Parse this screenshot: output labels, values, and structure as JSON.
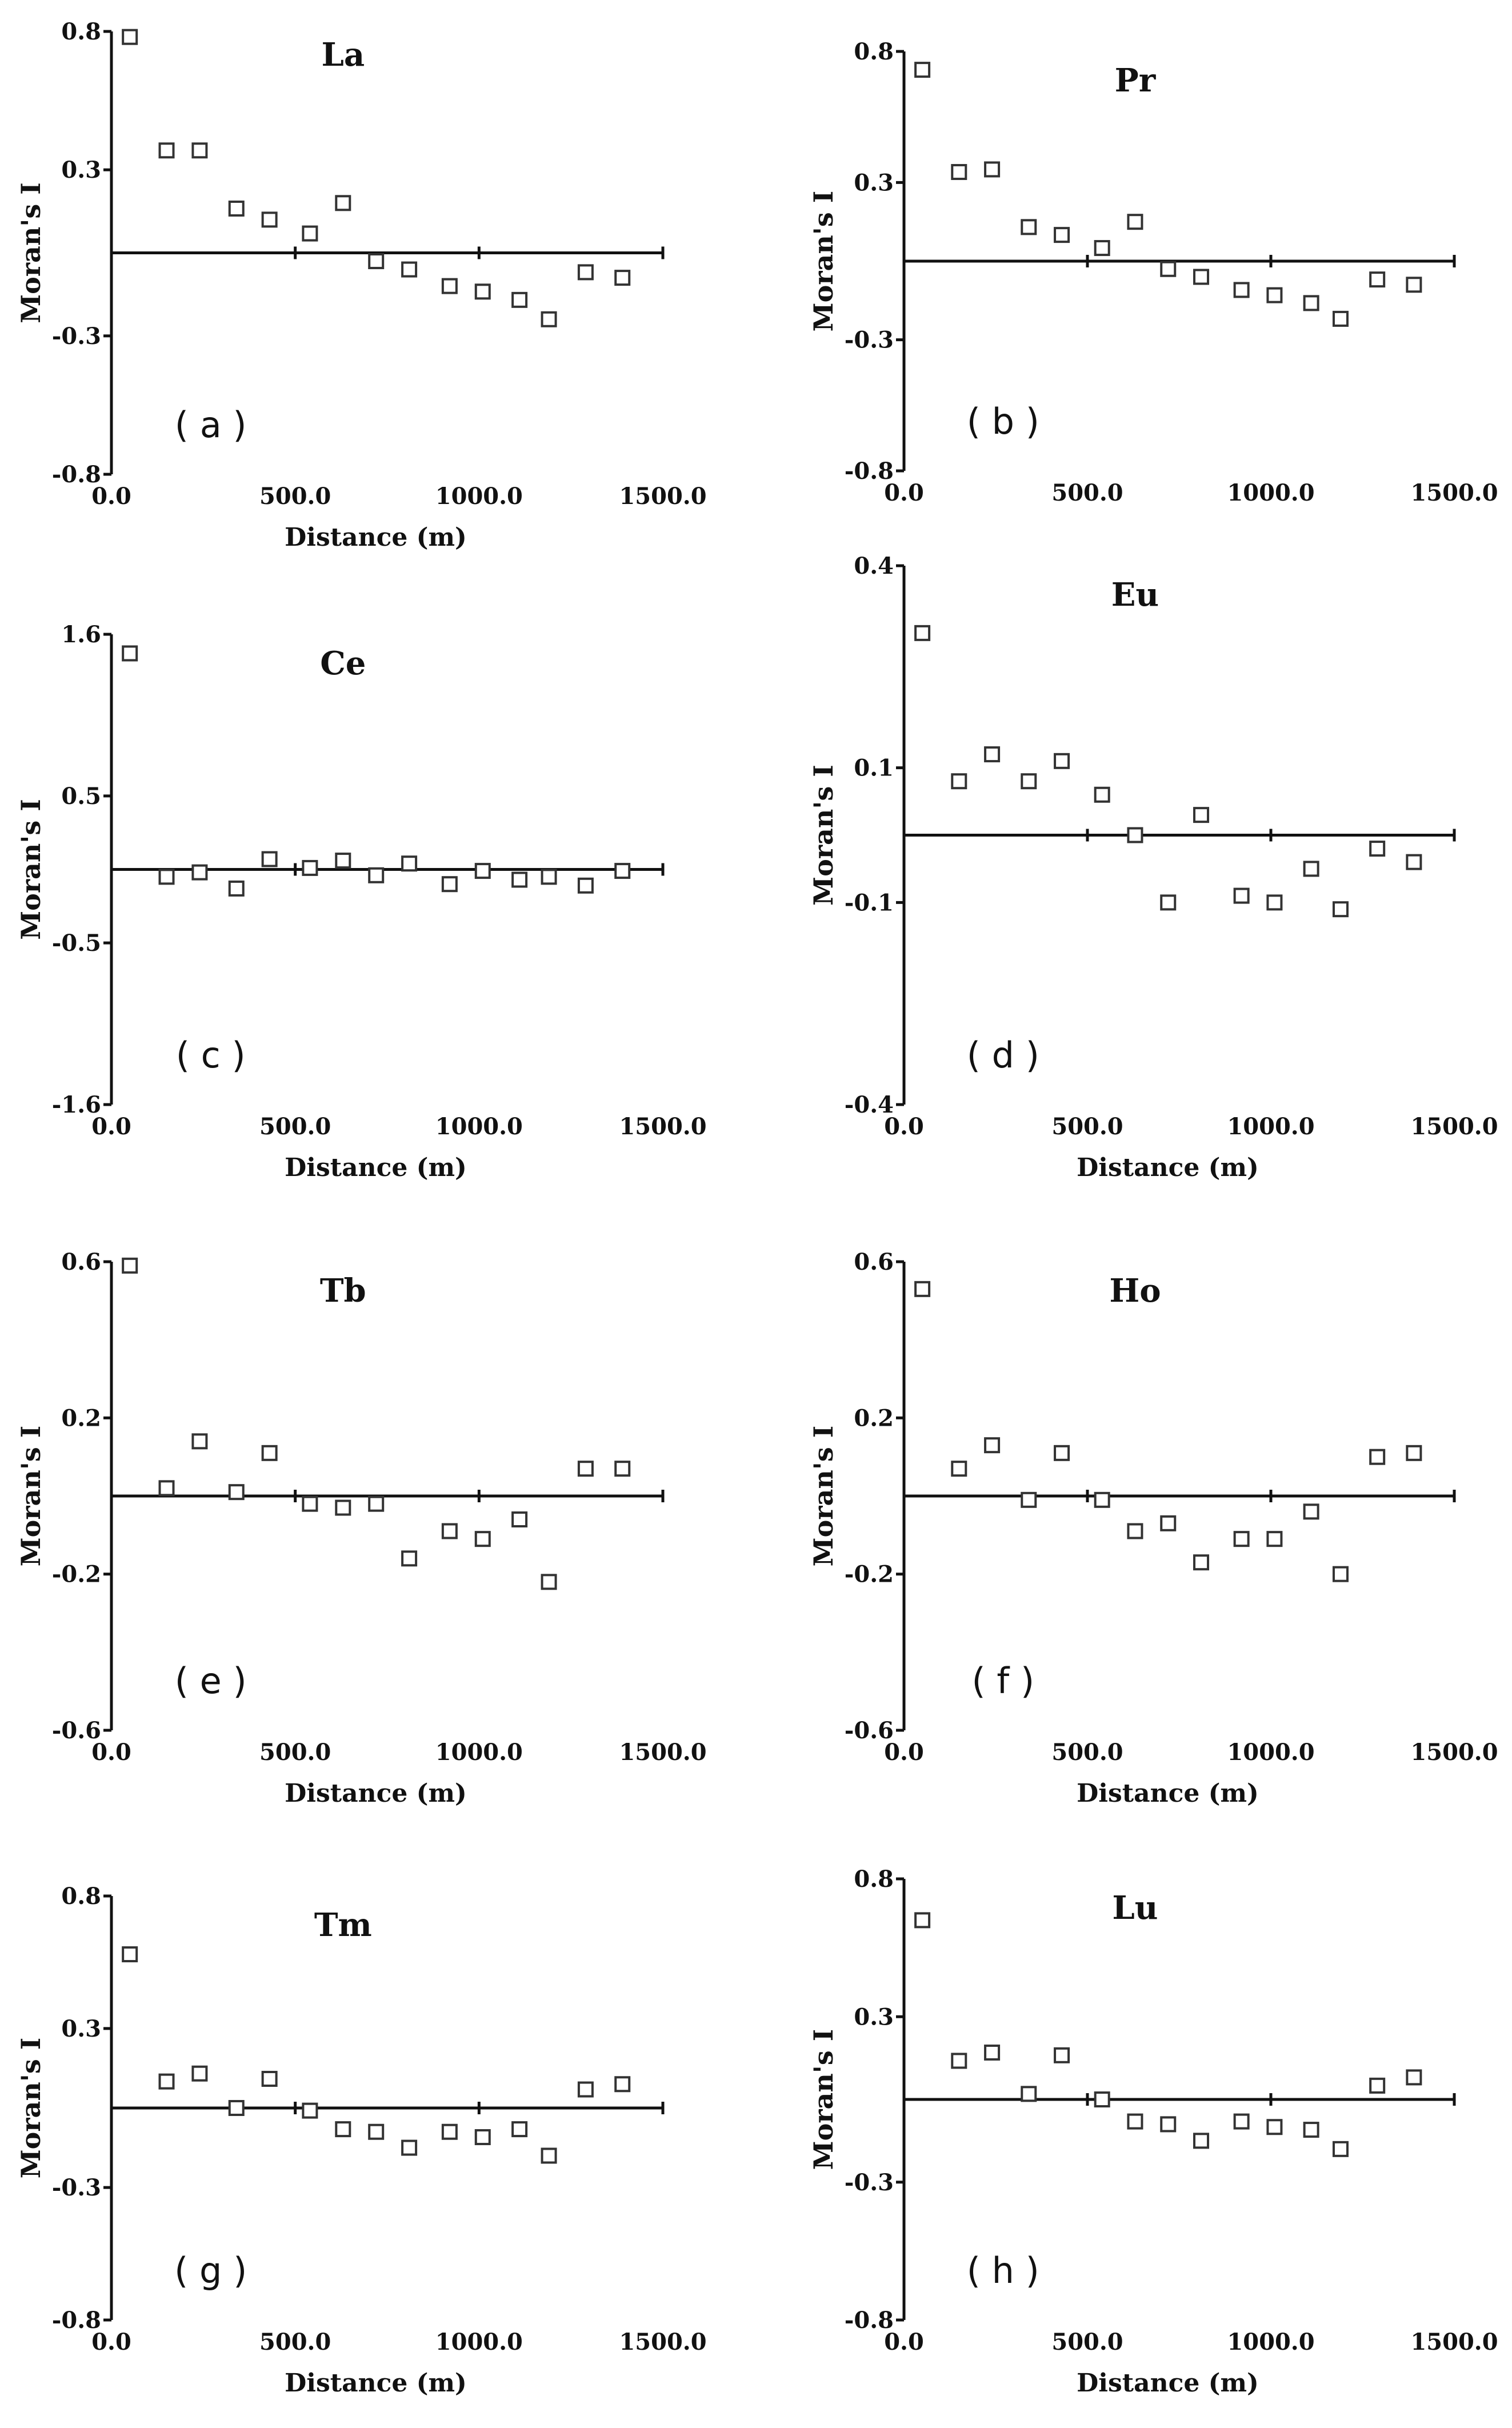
{
  "figure": {
    "chart_data": [
      {
        "type": "scatter",
        "title": "La",
        "panel_label": "( a )",
        "xlabel": "Distance (m)",
        "ylabel": "Moran's I",
        "xlim": [
          0,
          1500
        ],
        "ylim": [
          -0.8,
          0.8
        ],
        "xticks": [
          "0.0",
          "500.0",
          "1000.0",
          "1500.0"
        ],
        "yticks": [
          "0.8",
          "0.3",
          "-0.3",
          "-0.8"
        ],
        "x": [
          50,
          150,
          240,
          340,
          430,
          540,
          630,
          720,
          810,
          920,
          1010,
          1110,
          1190,
          1290,
          1390
        ],
        "y": [
          0.78,
          0.37,
          0.37,
          0.16,
          0.12,
          0.07,
          0.18,
          -0.03,
          -0.06,
          -0.12,
          -0.14,
          -0.17,
          -0.24,
          -0.07,
          -0.09
        ]
      },
      {
        "type": "scatter",
        "title": "Pr",
        "panel_label": "( b )",
        "xlabel": "",
        "ylabel": "Moran's I",
        "xlim": [
          0,
          1500
        ],
        "ylim": [
          -0.8,
          0.8
        ],
        "xticks": [
          "0.0",
          "500.0",
          "1000.0",
          "1500.0"
        ],
        "yticks": [
          "0.8",
          "0.3",
          "-0.3",
          "-0.8"
        ],
        "x": [
          50,
          150,
          240,
          340,
          430,
          540,
          630,
          720,
          810,
          920,
          1010,
          1110,
          1190,
          1290,
          1390
        ],
        "y": [
          0.73,
          0.34,
          0.35,
          0.13,
          0.1,
          0.05,
          0.15,
          -0.03,
          -0.06,
          -0.11,
          -0.13,
          -0.16,
          -0.22,
          -0.07,
          -0.09
        ]
      },
      {
        "type": "scatter",
        "title": "Ce",
        "panel_label": "( c )",
        "xlabel": "Distance (m)",
        "ylabel": "Moran's I",
        "xlim": [
          0,
          1500
        ],
        "ylim": [
          -1.6,
          1.6
        ],
        "xticks": [
          "0.0",
          "500.0",
          "1000.0",
          "1500.0"
        ],
        "yticks": [
          "1.6",
          "0.5",
          "-0.5",
          "-1.6"
        ],
        "x": [
          50,
          150,
          240,
          340,
          430,
          540,
          630,
          720,
          810,
          920,
          1010,
          1110,
          1190,
          1290,
          1390
        ],
        "y": [
          1.47,
          -0.05,
          -0.02,
          -0.13,
          0.07,
          0.01,
          0.06,
          -0.04,
          0.04,
          -0.1,
          -0.01,
          -0.07,
          -0.05,
          -0.11,
          -0.01
        ]
      },
      {
        "type": "scatter",
        "title": "Eu",
        "panel_label": "( d )",
        "xlabel": "Distance (m)",
        "ylabel": "Moran's I",
        "xlim": [
          0,
          1500
        ],
        "ylim": [
          -0.4,
          0.4
        ],
        "xticks": [
          "0.0",
          "500.0",
          "1000.0",
          "1500.0"
        ],
        "yticks": [
          "0.4",
          "0.1",
          "-0.1",
          "-0.4"
        ],
        "x": [
          50,
          150,
          240,
          340,
          430,
          540,
          630,
          720,
          810,
          920,
          1010,
          1110,
          1190,
          1290,
          1390
        ],
        "y": [
          0.3,
          0.08,
          0.12,
          0.08,
          0.11,
          0.06,
          0.0,
          -0.1,
          0.03,
          -0.09,
          -0.1,
          -0.05,
          -0.11,
          -0.02,
          -0.04
        ]
      },
      {
        "type": "scatter",
        "title": "Tb",
        "panel_label": "( e )",
        "xlabel": "Distance (m)",
        "ylabel": "Moran's I",
        "xlim": [
          0,
          1500
        ],
        "ylim": [
          -0.6,
          0.6
        ],
        "xticks": [
          "0.0",
          "500.0",
          "1000.0",
          "1500.0"
        ],
        "yticks": [
          "0.6",
          "0.2",
          "-0.2",
          "-0.6"
        ],
        "x": [
          50,
          150,
          240,
          340,
          430,
          540,
          630,
          720,
          810,
          920,
          1010,
          1110,
          1190,
          1290,
          1390
        ],
        "y": [
          0.59,
          0.02,
          0.14,
          0.01,
          0.11,
          -0.02,
          -0.03,
          -0.02,
          -0.16,
          -0.09,
          -0.11,
          -0.06,
          -0.22,
          0.07,
          0.07
        ]
      },
      {
        "type": "scatter",
        "title": "Ho",
        "panel_label": "( f )",
        "xlabel": "Distance (m)",
        "ylabel": "Moran's I",
        "xlim": [
          0,
          1500
        ],
        "ylim": [
          -0.6,
          0.6
        ],
        "xticks": [
          "0.0",
          "500.0",
          "1000.0",
          "1500.0"
        ],
        "yticks": [
          "0.6",
          "0.2",
          "-0.2",
          "-0.6"
        ],
        "x": [
          50,
          150,
          240,
          340,
          430,
          540,
          630,
          720,
          810,
          920,
          1010,
          1110,
          1190,
          1290,
          1390
        ],
        "y": [
          0.53,
          0.07,
          0.13,
          -0.01,
          0.11,
          -0.01,
          -0.09,
          -0.07,
          -0.17,
          -0.11,
          -0.11,
          -0.04,
          -0.2,
          0.1,
          0.11
        ]
      },
      {
        "type": "scatter",
        "title": "Tm",
        "panel_label": "( g )",
        "xlabel": "Distance (m)",
        "ylabel": "Moran's I",
        "xlim": [
          0,
          1500
        ],
        "ylim": [
          -0.8,
          0.8
        ],
        "xticks": [
          "0.0",
          "500.0",
          "1000.0",
          "1500.0"
        ],
        "yticks": [
          "0.8",
          "0.3",
          "-0.3",
          "-0.8"
        ],
        "x": [
          50,
          150,
          240,
          340,
          430,
          540,
          630,
          720,
          810,
          920,
          1010,
          1110,
          1190,
          1290,
          1390
        ],
        "y": [
          0.58,
          0.1,
          0.13,
          0.0,
          0.11,
          -0.01,
          -0.08,
          -0.09,
          -0.15,
          -0.09,
          -0.11,
          -0.08,
          -0.18,
          0.07,
          0.09
        ]
      },
      {
        "type": "scatter",
        "title": "Lu",
        "panel_label": "( h )",
        "xlabel": "Distance (m)",
        "ylabel": "Moran's I",
        "xlim": [
          0,
          1500
        ],
        "ylim": [
          -0.8,
          0.8
        ],
        "xticks": [
          "0.0",
          "500.0",
          "1000.0",
          "1500.0"
        ],
        "yticks": [
          "0.8",
          "0.3",
          "-0.3",
          "-0.8"
        ],
        "x": [
          50,
          150,
          240,
          340,
          430,
          540,
          630,
          720,
          810,
          920,
          1010,
          1110,
          1190,
          1290,
          1390
        ],
        "y": [
          0.65,
          0.14,
          0.17,
          0.02,
          0.16,
          0.0,
          -0.08,
          -0.09,
          -0.15,
          -0.08,
          -0.1,
          -0.11,
          -0.18,
          0.05,
          0.08
        ]
      }
    ]
  }
}
